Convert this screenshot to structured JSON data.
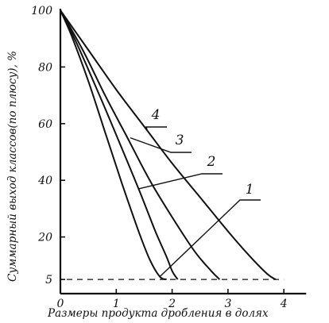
{
  "chart_data": {
    "type": "line",
    "title": "",
    "xlabel": "Размеры продукта дробления в долях",
    "ylabel": "Суммарный выход классов(по плюсу), %",
    "xlim": [
      0,
      4.4
    ],
    "ylim": [
      0,
      100
    ],
    "x_ticks": [
      "0",
      "1",
      "2",
      "3",
      "4"
    ],
    "y_ticks": [
      "5",
      "20",
      "40",
      "60",
      "80",
      "100"
    ],
    "grid": false,
    "reference_line": {
      "y": 5,
      "style": "dashed"
    },
    "series": [
      {
        "name": "1",
        "x": [
          0,
          0.2,
          0.5,
          0.8,
          1.1,
          1.4,
          1.6,
          1.78,
          1.9
        ],
        "y": [
          100,
          91,
          75,
          57,
          39,
          22,
          12,
          6,
          5
        ]
      },
      {
        "name": "2",
        "x": [
          0,
          0.3,
          0.7,
          1.0,
          1.4,
          1.7,
          1.9,
          2.0,
          2.1
        ],
        "y": [
          100,
          88,
          70,
          56,
          37,
          22,
          13,
          8,
          5
        ]
      },
      {
        "name": "3",
        "x": [
          0,
          0.4,
          0.8,
          1.2,
          1.6,
          2.0,
          2.4,
          2.7,
          2.85
        ],
        "y": [
          100,
          86,
          70,
          55,
          40,
          27,
          15,
          8,
          5
        ]
      },
      {
        "name": "4",
        "x": [
          0,
          0.5,
          1.0,
          1.5,
          2.0,
          2.5,
          3.0,
          3.4,
          3.7,
          3.85
        ],
        "y": [
          100,
          86,
          72,
          59,
          46,
          34,
          22,
          13,
          7,
          5
        ]
      }
    ]
  }
}
